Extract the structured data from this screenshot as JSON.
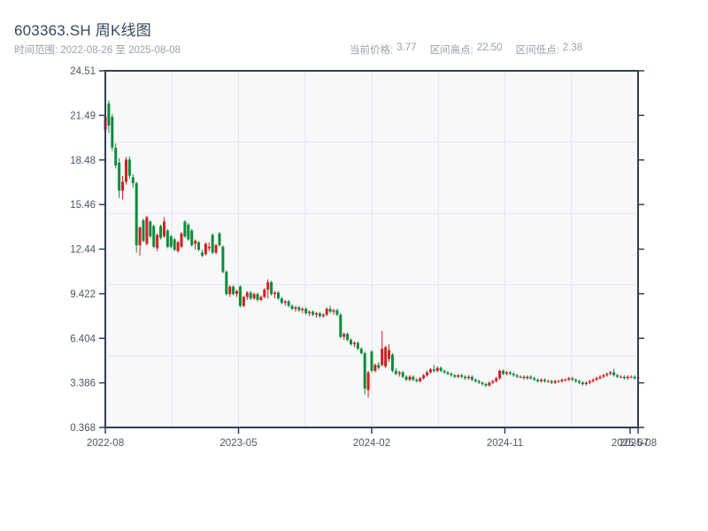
{
  "header": {
    "title": "603363.SH 周K线图",
    "date_range_label": "时间范围: 2022-08-26 至 2025-08-08",
    "stats": [
      {
        "label": "当前价格:",
        "value": "3.77"
      },
      {
        "label": "区间高点:",
        "value": "22.50"
      },
      {
        "label": "区间低点:",
        "value": "2.38"
      }
    ]
  },
  "chart_data": {
    "type": "candlestick",
    "symbol": "603363.SH",
    "period": "weekly",
    "title": "603363.SH 周K线图",
    "current_price": 3.77,
    "range_high": 22.5,
    "range_low": 2.38,
    "legend_position": "none",
    "grid": {
      "h_divisions": 5,
      "v_divisions": 8,
      "gridline_color": "#e4e6ea"
    },
    "plot_bg": "#f7f8fa",
    "axis_color": "#2e3f54",
    "tick_label_color": "#4a5764",
    "colors": {
      "up": "#d02020",
      "down": "#0f8b39"
    },
    "y_axis": {
      "min": 0.368,
      "max": 24.51,
      "tick_labels": [
        "24.51",
        "21.49",
        "18.48",
        "15.46",
        "12.44",
        "9.422",
        "6.404",
        "3.386",
        "0.368"
      ]
    },
    "x_axis": {
      "ticks": [
        {
          "label": "2022-08",
          "pos": 0
        },
        {
          "label": "2023-05",
          "pos": 0.25
        },
        {
          "label": "2024-02",
          "pos": 0.5
        },
        {
          "label": "2024-11",
          "pos": 0.75
        },
        {
          "label": "2025-07",
          "pos": 0.985
        },
        {
          "label": "2025-08",
          "pos": 1
        }
      ]
    },
    "ohlc": [
      [
        20.5,
        21.8,
        20.0,
        21.4
      ],
      [
        22.3,
        22.5,
        20.3,
        20.8
      ],
      [
        21.4,
        21.6,
        19.1,
        19.3
      ],
      [
        19.3,
        19.6,
        17.9,
        18.1
      ],
      [
        18.3,
        18.6,
        15.9,
        16.4
      ],
      [
        16.4,
        17.4,
        15.8,
        17.0
      ],
      [
        17.0,
        18.7,
        16.8,
        18.5
      ],
      [
        18.5,
        18.7,
        17.2,
        17.4
      ],
      [
        17.3,
        17.5,
        16.6,
        16.9
      ],
      [
        16.9,
        17.0,
        12.2,
        12.7
      ],
      [
        12.7,
        14.0,
        12.0,
        13.9
      ],
      [
        14.4,
        14.5,
        12.9,
        13.0
      ],
      [
        12.8,
        14.7,
        12.7,
        14.6
      ],
      [
        14.3,
        14.4,
        13.2,
        13.3
      ],
      [
        14.0,
        14.1,
        12.5,
        12.6
      ],
      [
        12.5,
        13.5,
        12.3,
        13.4
      ],
      [
        14.0,
        14.1,
        13.1,
        13.2
      ],
      [
        13.3,
        14.6,
        13.2,
        14.3
      ],
      [
        13.7,
        13.8,
        12.5,
        12.6
      ],
      [
        13.3,
        13.4,
        12.5,
        12.6
      ],
      [
        13.1,
        13.2,
        12.3,
        12.4
      ],
      [
        12.3,
        13.0,
        12.2,
        12.9
      ],
      [
        12.6,
        13.6,
        12.5,
        13.5
      ],
      [
        14.3,
        14.4,
        13.2,
        13.3
      ],
      [
        14.1,
        14.2,
        13.0,
        13.1
      ],
      [
        13.7,
        13.8,
        12.6,
        12.7
      ],
      [
        12.8,
        13.1,
        12.4,
        13.0
      ],
      [
        12.9,
        13.0,
        12.3,
        12.4
      ],
      [
        12.2,
        12.4,
        11.9,
        12.0
      ],
      [
        12.1,
        12.9,
        12.0,
        12.8
      ],
      [
        12.5,
        12.9,
        12.3,
        12.6
      ],
      [
        13.4,
        13.5,
        12.1,
        12.2
      ],
      [
        12.2,
        12.8,
        12.1,
        12.7
      ],
      [
        13.5,
        13.6,
        12.6,
        12.7
      ],
      [
        12.6,
        12.7,
        10.8,
        10.9
      ],
      [
        10.9,
        11.0,
        9.3,
        9.4
      ],
      [
        9.4,
        10.0,
        9.2,
        9.9
      ],
      [
        9.9,
        10.0,
        9.3,
        9.4
      ],
      [
        9.4,
        9.7,
        9.2,
        9.6
      ],
      [
        9.9,
        10.0,
        8.5,
        8.6
      ],
      [
        8.6,
        9.3,
        8.5,
        9.2
      ],
      [
        9.2,
        9.6,
        9.0,
        9.5
      ],
      [
        9.5,
        9.6,
        9.0,
        9.1
      ],
      [
        9.1,
        9.5,
        9.0,
        9.4
      ],
      [
        9.4,
        9.5,
        8.9,
        9.0
      ],
      [
        9.0,
        9.3,
        8.9,
        9.2
      ],
      [
        9.2,
        9.8,
        9.1,
        9.7
      ],
      [
        9.7,
        10.4,
        9.1,
        10.2
      ],
      [
        10.2,
        10.3,
        9.3,
        9.4
      ],
      [
        9.4,
        9.6,
        9.1,
        9.5
      ],
      [
        9.5,
        9.6,
        9.0,
        9.1
      ],
      [
        9.1,
        9.2,
        8.7,
        8.8
      ],
      [
        8.8,
        9.0,
        8.6,
        8.9
      ],
      [
        8.9,
        9.0,
        8.5,
        8.6
      ],
      [
        8.6,
        8.7,
        8.3,
        8.4
      ],
      [
        8.4,
        8.6,
        8.2,
        8.5
      ],
      [
        8.5,
        8.6,
        8.2,
        8.3
      ],
      [
        8.3,
        8.5,
        8.1,
        8.4
      ],
      [
        8.4,
        8.5,
        8.0,
        8.1
      ],
      [
        8.1,
        8.3,
        7.9,
        8.2
      ],
      [
        8.2,
        8.3,
        7.9,
        8.0
      ],
      [
        8.0,
        8.2,
        7.8,
        8.1
      ],
      [
        8.1,
        8.2,
        7.8,
        7.9
      ],
      [
        7.9,
        8.1,
        7.8,
        8.0
      ],
      [
        8.0,
        8.5,
        7.9,
        8.4
      ],
      [
        8.4,
        8.6,
        8.1,
        8.2
      ],
      [
        8.2,
        8.4,
        8.0,
        8.3
      ],
      [
        8.3,
        8.4,
        7.9,
        8.0
      ],
      [
        8.0,
        8.1,
        6.4,
        6.5
      ],
      [
        6.5,
        6.8,
        6.3,
        6.7
      ],
      [
        6.7,
        6.8,
        6.2,
        6.3
      ],
      [
        6.3,
        6.4,
        5.9,
        6.0
      ],
      [
        6.0,
        6.2,
        5.8,
        6.1
      ],
      [
        6.1,
        6.2,
        5.6,
        5.7
      ],
      [
        5.7,
        5.8,
        5.3,
        5.4
      ],
      [
        5.4,
        5.5,
        2.6,
        3.0
      ],
      [
        2.9,
        4.2,
        2.38,
        4.1
      ],
      [
        5.5,
        5.6,
        4.1,
        4.2
      ],
      [
        4.2,
        4.7,
        4.1,
        4.6
      ],
      [
        4.6,
        4.8,
        4.3,
        4.4
      ],
      [
        4.6,
        6.9,
        4.5,
        5.7
      ],
      [
        4.5,
        5.9,
        4.4,
        5.8
      ],
      [
        5.0,
        6.0,
        4.8,
        5.6
      ],
      [
        5.3,
        5.4,
        4.1,
        4.2
      ],
      [
        4.2,
        4.4,
        3.9,
        4.0
      ],
      [
        4.0,
        4.2,
        3.8,
        4.1
      ],
      [
        4.1,
        4.2,
        3.7,
        3.8
      ],
      [
        3.8,
        3.9,
        3.5,
        3.6
      ],
      [
        3.6,
        3.9,
        3.5,
        3.8
      ],
      [
        3.8,
        3.9,
        3.5,
        3.6
      ],
      [
        3.6,
        3.7,
        3.4,
        3.5
      ],
      [
        3.5,
        3.8,
        3.4,
        3.7
      ],
      [
        3.7,
        4.0,
        3.6,
        3.9
      ],
      [
        3.9,
        4.2,
        3.8,
        4.1
      ],
      [
        4.1,
        4.4,
        4.0,
        4.3
      ],
      [
        4.3,
        4.6,
        4.1,
        4.2
      ],
      [
        4.2,
        4.5,
        4.1,
        4.4
      ],
      [
        4.4,
        4.5,
        4.1,
        4.2
      ],
      [
        4.2,
        4.3,
        4.0,
        4.1
      ],
      [
        4.1,
        4.2,
        3.9,
        4.0
      ],
      [
        4.0,
        4.1,
        3.8,
        3.9
      ],
      [
        3.9,
        4.0,
        3.7,
        3.8
      ],
      [
        3.8,
        4.0,
        3.7,
        3.9
      ],
      [
        3.9,
        4.0,
        3.7,
        3.8
      ],
      [
        3.8,
        3.9,
        3.6,
        3.7
      ],
      [
        3.7,
        3.9,
        3.6,
        3.8
      ],
      [
        3.8,
        3.9,
        3.5,
        3.6
      ],
      [
        3.6,
        3.7,
        3.4,
        3.5
      ],
      [
        3.5,
        3.6,
        3.3,
        3.4
      ],
      [
        3.4,
        3.5,
        3.2,
        3.3
      ],
      [
        3.3,
        3.4,
        3.1,
        3.2
      ],
      [
        3.2,
        3.5,
        3.15,
        3.4
      ],
      [
        3.4,
        3.6,
        3.3,
        3.5
      ],
      [
        3.5,
        3.8,
        3.4,
        3.7
      ],
      [
        3.7,
        4.3,
        3.6,
        4.2
      ],
      [
        4.2,
        4.3,
        3.9,
        4.0
      ],
      [
        4.0,
        4.2,
        3.9,
        4.1
      ],
      [
        4.1,
        4.2,
        3.9,
        4.0
      ],
      [
        4.0,
        4.1,
        3.8,
        3.9
      ],
      [
        3.9,
        4.0,
        3.7,
        3.8
      ],
      [
        3.8,
        3.9,
        3.7,
        3.8
      ],
      [
        3.8,
        3.9,
        3.6,
        3.7
      ],
      [
        3.7,
        3.9,
        3.6,
        3.8
      ],
      [
        3.8,
        3.9,
        3.6,
        3.7
      ],
      [
        3.7,
        3.8,
        3.5,
        3.6
      ],
      [
        3.6,
        3.7,
        3.4,
        3.5
      ],
      [
        3.5,
        3.7,
        3.4,
        3.6
      ],
      [
        3.6,
        3.7,
        3.4,
        3.5
      ],
      [
        3.5,
        3.6,
        3.4,
        3.5
      ],
      [
        3.5,
        3.6,
        3.3,
        3.4
      ],
      [
        3.4,
        3.6,
        3.3,
        3.5
      ],
      [
        3.5,
        3.6,
        3.4,
        3.5
      ],
      [
        3.5,
        3.7,
        3.4,
        3.6
      ],
      [
        3.6,
        3.7,
        3.5,
        3.6
      ],
      [
        3.6,
        3.8,
        3.5,
        3.7
      ],
      [
        3.7,
        3.8,
        3.5,
        3.6
      ],
      [
        3.6,
        3.7,
        3.4,
        3.5
      ],
      [
        3.5,
        3.6,
        3.3,
        3.4
      ],
      [
        3.4,
        3.5,
        3.2,
        3.3
      ],
      [
        3.3,
        3.5,
        3.2,
        3.4
      ],
      [
        3.4,
        3.6,
        3.3,
        3.5
      ],
      [
        3.5,
        3.7,
        3.4,
        3.6
      ],
      [
        3.6,
        3.8,
        3.5,
        3.7
      ],
      [
        3.7,
        3.9,
        3.6,
        3.8
      ],
      [
        3.8,
        4.0,
        3.7,
        3.9
      ],
      [
        3.9,
        4.1,
        3.8,
        4.0
      ],
      [
        4.0,
        4.2,
        3.9,
        4.1
      ],
      [
        4.1,
        4.35,
        3.8,
        3.9
      ],
      [
        3.9,
        4.0,
        3.7,
        3.8
      ],
      [
        3.8,
        3.9,
        3.7,
        3.8
      ],
      [
        3.8,
        3.9,
        3.6,
        3.7
      ],
      [
        3.7,
        3.9,
        3.6,
        3.8
      ],
      [
        3.8,
        3.9,
        3.7,
        3.8
      ],
      [
        3.8,
        3.9,
        3.6,
        3.7
      ],
      [
        3.7,
        3.85,
        3.65,
        3.77
      ]
    ]
  }
}
